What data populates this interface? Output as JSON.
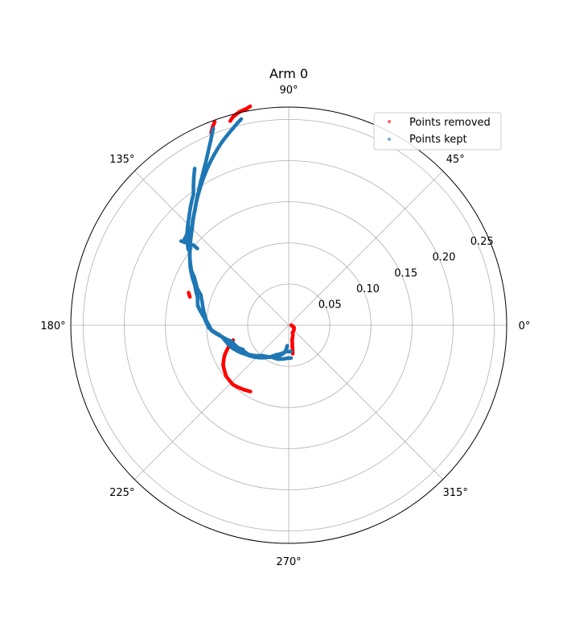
{
  "chart_data": {
    "type": "scatter",
    "projection": "polar",
    "title": "Arm 0",
    "r_ticks": [
      "0.05",
      "0.10",
      "0.15",
      "0.20",
      "0.25"
    ],
    "r_tick_values": [
      0.05,
      0.1,
      0.15,
      0.2,
      0.25
    ],
    "r_max": 0.265,
    "theta_ticks": [
      "0°",
      "45°",
      "90°",
      "135°",
      "180°",
      "225°",
      "270°",
      "315°"
    ],
    "theta_tick_values": [
      0,
      45,
      90,
      135,
      180,
      225,
      270,
      315
    ],
    "grid": true,
    "legend_position": "top-right",
    "legend": [
      "Points removed",
      "Points kept"
    ],
    "series": [
      {
        "name": "Points removed",
        "color": "#ff0000",
        "segments": [
          [
            [
              100,
              0.27
            ],
            [
              101,
              0.268
            ],
            [
              103,
              0.266
            ],
            [
              104,
              0.264
            ],
            [
              105,
              0.262
            ],
            [
              106,
              0.258
            ]
          ],
          [
            [
              110,
              0.263
            ],
            [
              111,
              0.258
            ],
            [
              112,
              0.252
            ]
          ],
          [
            [
              162,
              0.128
            ],
            [
              164,
              0.125
            ]
          ],
          [
            [
              195,
              0.07
            ],
            [
              200,
              0.078
            ],
            [
              205,
              0.086
            ],
            [
              211,
              0.093
            ],
            [
              219,
              0.098
            ],
            [
              227,
              0.099
            ],
            [
              236,
              0.095
            ],
            [
              240,
              0.093
            ]
          ],
          [
            [
              0,
              0.003
            ],
            [
              336,
              0.007
            ],
            [
              298,
              0.01
            ],
            [
              283,
              0.018
            ],
            [
              280,
              0.025
            ],
            [
              279,
              0.03
            ],
            [
              278,
              0.035
            ]
          ]
        ]
      },
      {
        "name": "Points kept",
        "color": "#1f77b4",
        "segments": [
          [
            [
              111,
              0.256
            ],
            [
              113,
              0.243
            ],
            [
              115,
              0.232
            ],
            [
              117,
              0.222
            ],
            [
              120,
              0.21
            ],
            [
              124,
              0.196
            ],
            [
              129,
              0.181
            ],
            [
              135,
              0.167
            ],
            [
              141,
              0.155
            ],
            [
              147,
              0.143
            ],
            [
              151,
              0.135
            ],
            [
              153,
              0.129
            ],
            [
              155,
              0.125
            ],
            [
              158,
              0.12
            ],
            [
              161,
              0.113
            ],
            [
              165,
              0.109
            ],
            [
              169,
              0.106
            ],
            [
              173,
              0.103
            ],
            [
              177,
              0.1
            ],
            [
              180,
              0.097
            ],
            [
              184,
              0.094
            ],
            [
              190,
              0.082
            ],
            [
              196,
              0.072
            ],
            [
              203,
              0.068
            ],
            [
              210,
              0.066
            ],
            [
              224,
              0.056
            ],
            [
              247,
              0.039
            ],
            [
              264,
              0.032
            ],
            [
              270,
              0.032
            ],
            [
              275,
              0.032
            ]
          ],
          [
            [
              103,
              0.257
            ],
            [
              106,
              0.248
            ],
            [
              110,
              0.237
            ],
            [
              114,
              0.225
            ],
            [
              118,
              0.213
            ],
            [
              123,
              0.198
            ],
            [
              129,
              0.181
            ],
            [
              135,
              0.166
            ],
            [
              142,
              0.152
            ],
            [
              150,
              0.138
            ],
            [
              157,
              0.124
            ],
            [
              163,
              0.116
            ],
            [
              168,
              0.113
            ],
            [
              175,
              0.103
            ],
            [
              182,
              0.097
            ],
            [
              188,
              0.085
            ],
            [
              194,
              0.077
            ],
            [
              200,
              0.072
            ],
            [
              208,
              0.063
            ]
          ],
          [
            [
              196,
              0.078
            ],
            [
              201,
              0.072
            ],
            [
              207,
              0.064
            ],
            [
              215,
              0.061
            ],
            [
              231,
              0.049
            ],
            [
              251,
              0.04
            ],
            [
              262,
              0.033
            ],
            [
              266,
              0.025
            ]
          ],
          [
            [
              190,
              0.082
            ],
            [
              202,
              0.074
            ],
            [
              211,
              0.066
            ],
            [
              220,
              0.057
            ],
            [
              229,
              0.049
            ],
            [
              241,
              0.044
            ],
            [
              253,
              0.043
            ],
            [
              268,
              0.04
            ],
            [
              274,
              0.04
            ]
          ],
          [
            [
              121,
              0.222
            ],
            [
              123,
              0.212
            ],
            [
              126,
              0.197
            ],
            [
              130,
              0.186
            ],
            [
              133,
              0.178
            ],
            [
              136,
              0.171
            ],
            [
              139,
              0.164
            ],
            [
              143,
              0.153
            ]
          ],
          [
            [
              142,
              0.166
            ],
            [
              141,
              0.158
            ],
            [
              140,
              0.151
            ],
            [
              140,
              0.145
            ]
          ],
          [
            [
              135,
              0.168
            ],
            [
              138,
              0.166
            ],
            [
              141,
              0.164
            ]
          ]
        ]
      }
    ]
  }
}
